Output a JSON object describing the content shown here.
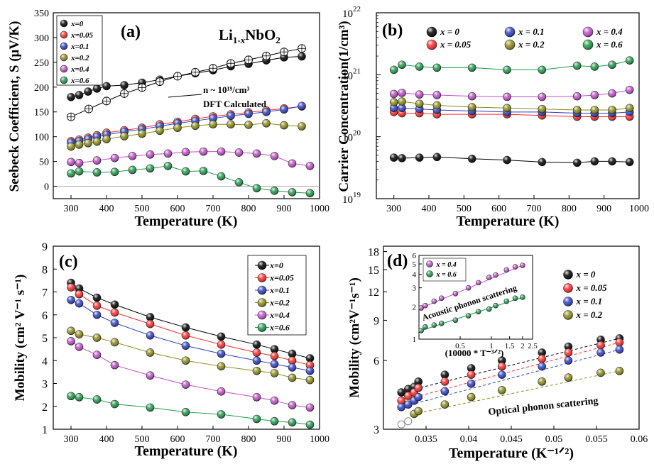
{
  "chart_data": [
    {
      "panel": "(a)",
      "type": "scatter",
      "annotation_formula": {
        "base": "Li",
        "sub1": "1-",
        "subx": "x",
        "tail": "NbO",
        "sub2": "2"
      },
      "xlabel": "Temperature (K)",
      "ylabel": "Seebeck Coefficient, S (μV/K)",
      "xlim": [
        250,
        1000
      ],
      "ylim": [
        -25,
        350
      ],
      "xticks": [
        300,
        400,
        500,
        600,
        700,
        800,
        900,
        1000
      ],
      "yticks": [
        0,
        50,
        100,
        150,
        200,
        250,
        300,
        350
      ],
      "dft_annotation": {
        "line1": "n ~ 10¹⁹/cm³",
        "line2": "DFT Calculated"
      },
      "series": [
        {
          "name": "x=0",
          "color": "#000000",
          "x": [
            300,
            323,
            348,
            373,
            400,
            450,
            500,
            550,
            600,
            650,
            700,
            750,
            800,
            850,
            900,
            950
          ],
          "y": [
            180,
            184,
            191,
            197,
            202,
            204,
            209,
            215,
            222,
            228,
            234,
            242,
            247,
            254,
            260,
            262
          ]
        },
        {
          "name": "x=0.05",
          "color": "#ff2a2a",
          "x": [
            300,
            323,
            348,
            373,
            400,
            450,
            500,
            550,
            600,
            650,
            700,
            750,
            800,
            850,
            900,
            950
          ],
          "y": [
            91,
            94,
            98,
            103,
            108,
            113,
            118,
            125,
            130,
            136,
            141,
            145,
            149,
            153,
            157,
            161
          ]
        },
        {
          "name": "x=0.1",
          "color": "#2e3fc4",
          "x": [
            300,
            323,
            348,
            373,
            400,
            450,
            500,
            550,
            600,
            650,
            700,
            750,
            800,
            850,
            900,
            950
          ],
          "y": [
            88,
            91,
            95,
            100,
            104,
            110,
            115,
            121,
            127,
            132,
            137,
            142,
            146,
            150,
            155,
            162
          ]
        },
        {
          "name": "x=0.2",
          "color": "#8b8b1a",
          "x": [
            300,
            323,
            348,
            373,
            400,
            450,
            500,
            550,
            600,
            650,
            700,
            750,
            800,
            850,
            900,
            950
          ],
          "y": [
            80,
            84,
            87,
            90,
            95,
            101,
            106,
            112,
            118,
            122,
            125,
            125,
            124,
            127,
            123,
            121
          ]
        },
        {
          "name": "x=0.4",
          "color": "#c050c8",
          "x": [
            300,
            323,
            373,
            423,
            473,
            523,
            573,
            623,
            673,
            723,
            773,
            823,
            873,
            923,
            973
          ],
          "y": [
            49,
            47,
            52,
            57,
            61,
            64,
            66,
            69,
            70,
            70,
            68,
            66,
            61,
            46,
            41
          ]
        },
        {
          "name": "x=0.6",
          "color": "#1f9a4a",
          "x": [
            300,
            323,
            373,
            423,
            473,
            523,
            573,
            623,
            673,
            723,
            773,
            823,
            873,
            923,
            973
          ],
          "y": [
            26,
            30,
            28,
            29,
            33,
            36,
            41,
            30,
            31,
            20,
            8,
            -4,
            -9,
            -12,
            -14
          ]
        },
        {
          "name": "DFT",
          "color": "#000000",
          "marker": "crosshair",
          "x": [
            300,
            350,
            400,
            450,
            500,
            550,
            600,
            650,
            700,
            750,
            800,
            850,
            900,
            950
          ],
          "y": [
            140,
            156,
            172,
            187,
            199,
            211,
            222,
            230,
            238,
            248,
            255,
            263,
            271,
            278
          ]
        }
      ]
    },
    {
      "panel": "(b)",
      "type": "scatter",
      "xlabel": "Temperature (K)",
      "ylabel": "Carrier Concentration(1/cm³)",
      "xlim": [
        250,
        1000
      ],
      "ylim": [
        1e+19,
        1e+22
      ],
      "yscale": "log",
      "xticks": [
        300,
        400,
        500,
        600,
        700,
        800,
        900,
        1000
      ],
      "ytick_labels": [
        {
          "base": "10",
          "exp": "19"
        },
        {
          "base": "10",
          "exp": "20"
        },
        {
          "base": "10",
          "exp": "21"
        },
        {
          "base": "10",
          "exp": "22"
        }
      ],
      "series": [
        {
          "name": "x = 0",
          "color": "#000000",
          "x": [
            300,
            323,
            373,
            423,
            523,
            623,
            723,
            823,
            873,
            923,
            973
          ],
          "y": [
            4.6e+19,
            4.5e+19,
            4.6e+19,
            4.7e+19,
            4.4e+19,
            4.2e+19,
            3.9e+19,
            3.8e+19,
            4e+19,
            4e+19,
            3.9e+19
          ]
        },
        {
          "name": "x = 0.05",
          "color": "#ff2a2a",
          "x": [
            300,
            323,
            373,
            423,
            523,
            623,
            723,
            823,
            873,
            923,
            973
          ],
          "y": [
            2.5e+20,
            2.4e+20,
            2.4e+20,
            2.3e+20,
            2.3e+20,
            2.3e+20,
            2.2e+20,
            2.1e+20,
            2.1e+20,
            2.1e+20,
            2.1e+20
          ]
        },
        {
          "name": "x = 0.1",
          "color": "#2e3fc4",
          "x": [
            300,
            323,
            373,
            423,
            523,
            623,
            723,
            823,
            873,
            923,
            973
          ],
          "y": [
            2.9e+20,
            2.9e+20,
            2.8e+20,
            2.7e+20,
            2.6e+20,
            2.5e+20,
            2.5e+20,
            2.4e+20,
            2.4e+20,
            2.4e+20,
            2.5e+20
          ]
        },
        {
          "name": "x = 0.2",
          "color": "#8b8b1a",
          "x": [
            300,
            323,
            373,
            423,
            523,
            623,
            723,
            823,
            873,
            923,
            973
          ],
          "y": [
            3.6e+20,
            3.7e+20,
            3.4e+20,
            3.2e+20,
            3e+20,
            2.9e+20,
            2.8e+20,
            2.7e+20,
            2.7e+20,
            2.7e+20,
            2.9e+20
          ]
        },
        {
          "name": "x = 0.4",
          "color": "#c050c8",
          "x": [
            300,
            323,
            373,
            423,
            523,
            623,
            723,
            823,
            873,
            923,
            973
          ],
          "y": [
            4.9e+20,
            5.1e+20,
            4.8e+20,
            4.7e+20,
            4.5e+20,
            4.4e+20,
            4.4e+20,
            4.5e+20,
            4.7e+20,
            5e+20,
            5.7e+20
          ]
        },
        {
          "name": "x = 0.6",
          "color": "#1f9a4a",
          "x": [
            300,
            323,
            373,
            423,
            523,
            623,
            723,
            823,
            873,
            923,
            973
          ],
          "y": [
            1.2e+21,
            1.45e+21,
            1.35e+21,
            1.3e+21,
            1.3e+21,
            1.2e+21,
            1.2e+21,
            1.4e+21,
            1.35e+21,
            1.45e+21,
            1.7e+21
          ]
        }
      ]
    },
    {
      "panel": "(c)",
      "type": "line",
      "xlabel": "Temperature (K)",
      "ylabel": "Mobility (cm² V⁻¹ s⁻¹)",
      "xlim": [
        250,
        1000
      ],
      "ylim": [
        1,
        9
      ],
      "xticks": [
        300,
        400,
        500,
        600,
        700,
        800,
        900,
        1000
      ],
      "yticks": [
        1,
        2,
        3,
        4,
        5,
        6,
        7,
        8,
        9
      ],
      "series": [
        {
          "name": "x=0",
          "color": "#000000",
          "x": [
            300,
            323,
            373,
            423,
            523,
            623,
            723,
            823,
            873,
            923,
            973
          ],
          "y": [
            7.4,
            7.15,
            6.75,
            6.45,
            5.9,
            5.45,
            5.05,
            4.7,
            4.5,
            4.3,
            4.1
          ]
        },
        {
          "name": "x=0.05",
          "color": "#ff2a2a",
          "x": [
            300,
            323,
            373,
            423,
            523,
            623,
            723,
            823,
            873,
            923,
            973
          ],
          "y": [
            7.2,
            6.9,
            6.4,
            6.1,
            5.6,
            5.1,
            4.7,
            4.35,
            4.2,
            4.0,
            3.8
          ]
        },
        {
          "name": "x=0.1",
          "color": "#2e3fc4",
          "x": [
            300,
            323,
            373,
            423,
            523,
            623,
            723,
            823,
            873,
            923,
            973
          ],
          "y": [
            6.65,
            6.5,
            6.0,
            5.65,
            5.1,
            4.65,
            4.3,
            4.0,
            3.85,
            3.7,
            3.55
          ]
        },
        {
          "name": "x=0.2",
          "color": "#8b8b1a",
          "x": [
            300,
            323,
            373,
            423,
            523,
            623,
            723,
            823,
            873,
            923,
            973
          ],
          "y": [
            5.3,
            5.15,
            5.0,
            4.8,
            4.35,
            4.0,
            3.75,
            3.55,
            3.45,
            3.25,
            3.15
          ]
        },
        {
          "name": "x=0.4",
          "color": "#c050c8",
          "x": [
            300,
            323,
            373,
            423,
            523,
            623,
            723,
            823,
            873,
            923,
            973
          ],
          "y": [
            4.85,
            4.6,
            4.25,
            3.8,
            3.35,
            2.95,
            2.65,
            2.4,
            2.25,
            2.05,
            1.95
          ]
        },
        {
          "name": "x=0.6",
          "color": "#1f9a4a",
          "x": [
            300,
            323,
            373,
            423,
            523,
            623,
            723,
            823,
            873,
            923,
            973
          ],
          "y": [
            2.45,
            2.4,
            2.3,
            2.1,
            1.95,
            1.75,
            1.65,
            1.45,
            1.35,
            1.3,
            1.2
          ]
        }
      ]
    },
    {
      "panel": "(d)",
      "type": "scatter",
      "xlabel": "Temperature (K⁻¹ᐟ²)",
      "ylabel": "Mobility (cm²V⁻¹s⁻¹)",
      "xlim": [
        0.03,
        0.06
      ],
      "ylim": [
        3,
        19
      ],
      "yscale": "log",
      "xticks": [
        0.035,
        0.04,
        0.045,
        0.05,
        0.055,
        0.06
      ],
      "yticks": [
        3,
        6,
        9,
        12,
        15,
        18
      ],
      "annotation": "Optical phonon scattering",
      "series": [
        {
          "name": "x = 0",
          "color": "#000000",
          "x": [
            0.0321,
            0.0329,
            0.0336,
            0.0341,
            0.0372,
            0.0403,
            0.0439,
            0.0486,
            0.0517,
            0.0555,
            0.0577
          ],
          "y": [
            4.35,
            4.5,
            4.6,
            4.85,
            5.2,
            5.55,
            6.0,
            6.5,
            6.9,
            7.4,
            7.5
          ]
        },
        {
          "name": "x = 0.05",
          "color": "#ff2a2a",
          "x": [
            0.0321,
            0.0329,
            0.0336,
            0.0341,
            0.0372,
            0.0403,
            0.0439,
            0.0486,
            0.0517,
            0.0555,
            0.0577
          ],
          "y": [
            4.0,
            4.2,
            4.35,
            4.55,
            4.85,
            5.2,
            5.65,
            6.1,
            6.5,
            7.0,
            7.2
          ]
        },
        {
          "name": "x = 0.1",
          "color": "#2e3fc4",
          "x": [
            0.0321,
            0.0329,
            0.0336,
            0.0341,
            0.0372,
            0.0403,
            0.0439,
            0.0486,
            0.0517,
            0.0555,
            0.0577
          ],
          "y": [
            3.75,
            3.85,
            4.0,
            4.15,
            4.4,
            4.75,
            5.2,
            5.65,
            6.0,
            6.5,
            6.7
          ]
        },
        {
          "name": "x = 0.2",
          "color": "#8b8b1a",
          "x": [
            0.0336,
            0.0341,
            0.0372,
            0.0403,
            0.0439,
            0.0486,
            0.0517,
            0.0555,
            0.0577
          ],
          "y": [
            3.5,
            3.6,
            3.85,
            4.15,
            4.45,
            4.85,
            5.05,
            5.3,
            5.4
          ]
        },
        {
          "name": "",
          "color": "#888888",
          "hollow": true,
          "x": [
            0.0321,
            0.0329
          ],
          "y": [
            3.15,
            3.25
          ]
        }
      ],
      "inset": {
        "type": "scatter",
        "xlabel": "(10000 * T⁻³ᐟ²)",
        "xlim": [
          0.2,
          2.5
        ],
        "ylim": [
          1,
          6
        ],
        "xscale": "log",
        "yscale": "log",
        "xticks": [
          0.5,
          1,
          1.5,
          2,
          2.5
        ],
        "yticks": [
          1,
          2,
          3,
          4,
          5,
          6
        ],
        "annotation": "Acoustic phonon scattering",
        "series": [
          {
            "name": "x = 0.4",
            "color": "#c050c8",
            "x": [
              0.21,
              0.23,
              0.28,
              0.33,
              0.45,
              0.6,
              0.75,
              0.95,
              1.1,
              1.4,
              1.7,
              2.0
            ],
            "y": [
              1.95,
              2.05,
              2.25,
              2.4,
              2.65,
              3.0,
              3.35,
              3.75,
              3.95,
              4.4,
              4.7,
              4.85
            ]
          },
          {
            "name": "x = 0.6",
            "color": "#1f9a4a",
            "x": [
              0.21,
              0.23,
              0.28,
              0.33,
              0.45,
              0.6,
              0.75,
              0.95,
              1.1,
              1.4,
              1.7,
              2.0
            ],
            "y": [
              1.2,
              1.3,
              1.35,
              1.4,
              1.5,
              1.65,
              1.8,
              1.9,
              2.05,
              2.25,
              2.4,
              2.45
            ]
          }
        ]
      }
    }
  ]
}
